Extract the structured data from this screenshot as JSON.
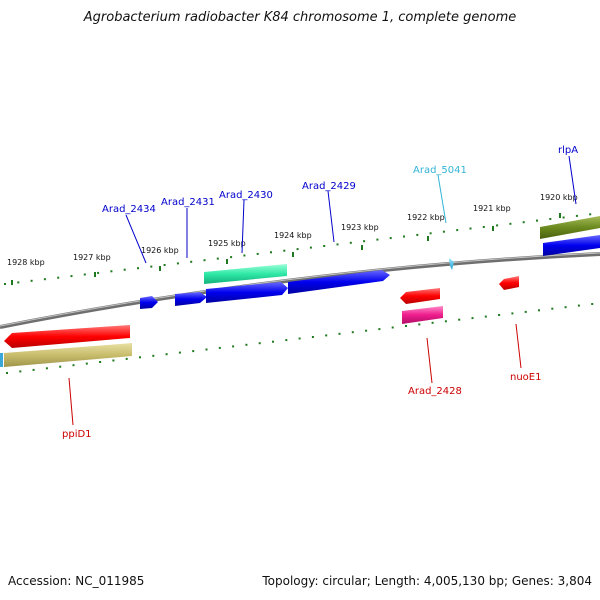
{
  "title": "Agrobacterium radiobacter K84 chromosome 1, complete genome",
  "footer": {
    "accession": "Accession: NC_011985",
    "topology": "Topology: circular; Length: 4,005,130 bp; Genes: 3,804"
  },
  "colors": {
    "backbone": "#8a8a8a",
    "tick": "#1f7a1f",
    "label_blue": "#0000cc",
    "label_cyan": "#33b5d6",
    "label_red": "#cc0000"
  },
  "ticks": [
    {
      "label": "1928 kbp"
    },
    {
      "label": "1927 kbp"
    },
    {
      "label": "1926 kbp"
    },
    {
      "label": "1925 kbp"
    },
    {
      "label": "1924 kbp"
    },
    {
      "label": "1923 kbp"
    },
    {
      "label": "1922 kbp"
    },
    {
      "label": "1921 kbp"
    },
    {
      "label": "1920 kbp"
    }
  ],
  "genes": [
    {
      "name": "Arad_2434",
      "color": "#0000cc"
    },
    {
      "name": "Arad_2431",
      "color": "#0000cc"
    },
    {
      "name": "Arad_2430",
      "color": "#0000cc"
    },
    {
      "name": "Arad_2429",
      "color": "#0000cc"
    },
    {
      "name": "Arad_5041",
      "color": "#33b5d6"
    },
    {
      "name": "rlpA",
      "color": "#0000cc"
    },
    {
      "name": "ppiD1",
      "color": "#cc0000"
    },
    {
      "name": "Arad_2428",
      "color": "#cc0000"
    },
    {
      "name": "nuoE1",
      "color": "#cc0000"
    }
  ]
}
